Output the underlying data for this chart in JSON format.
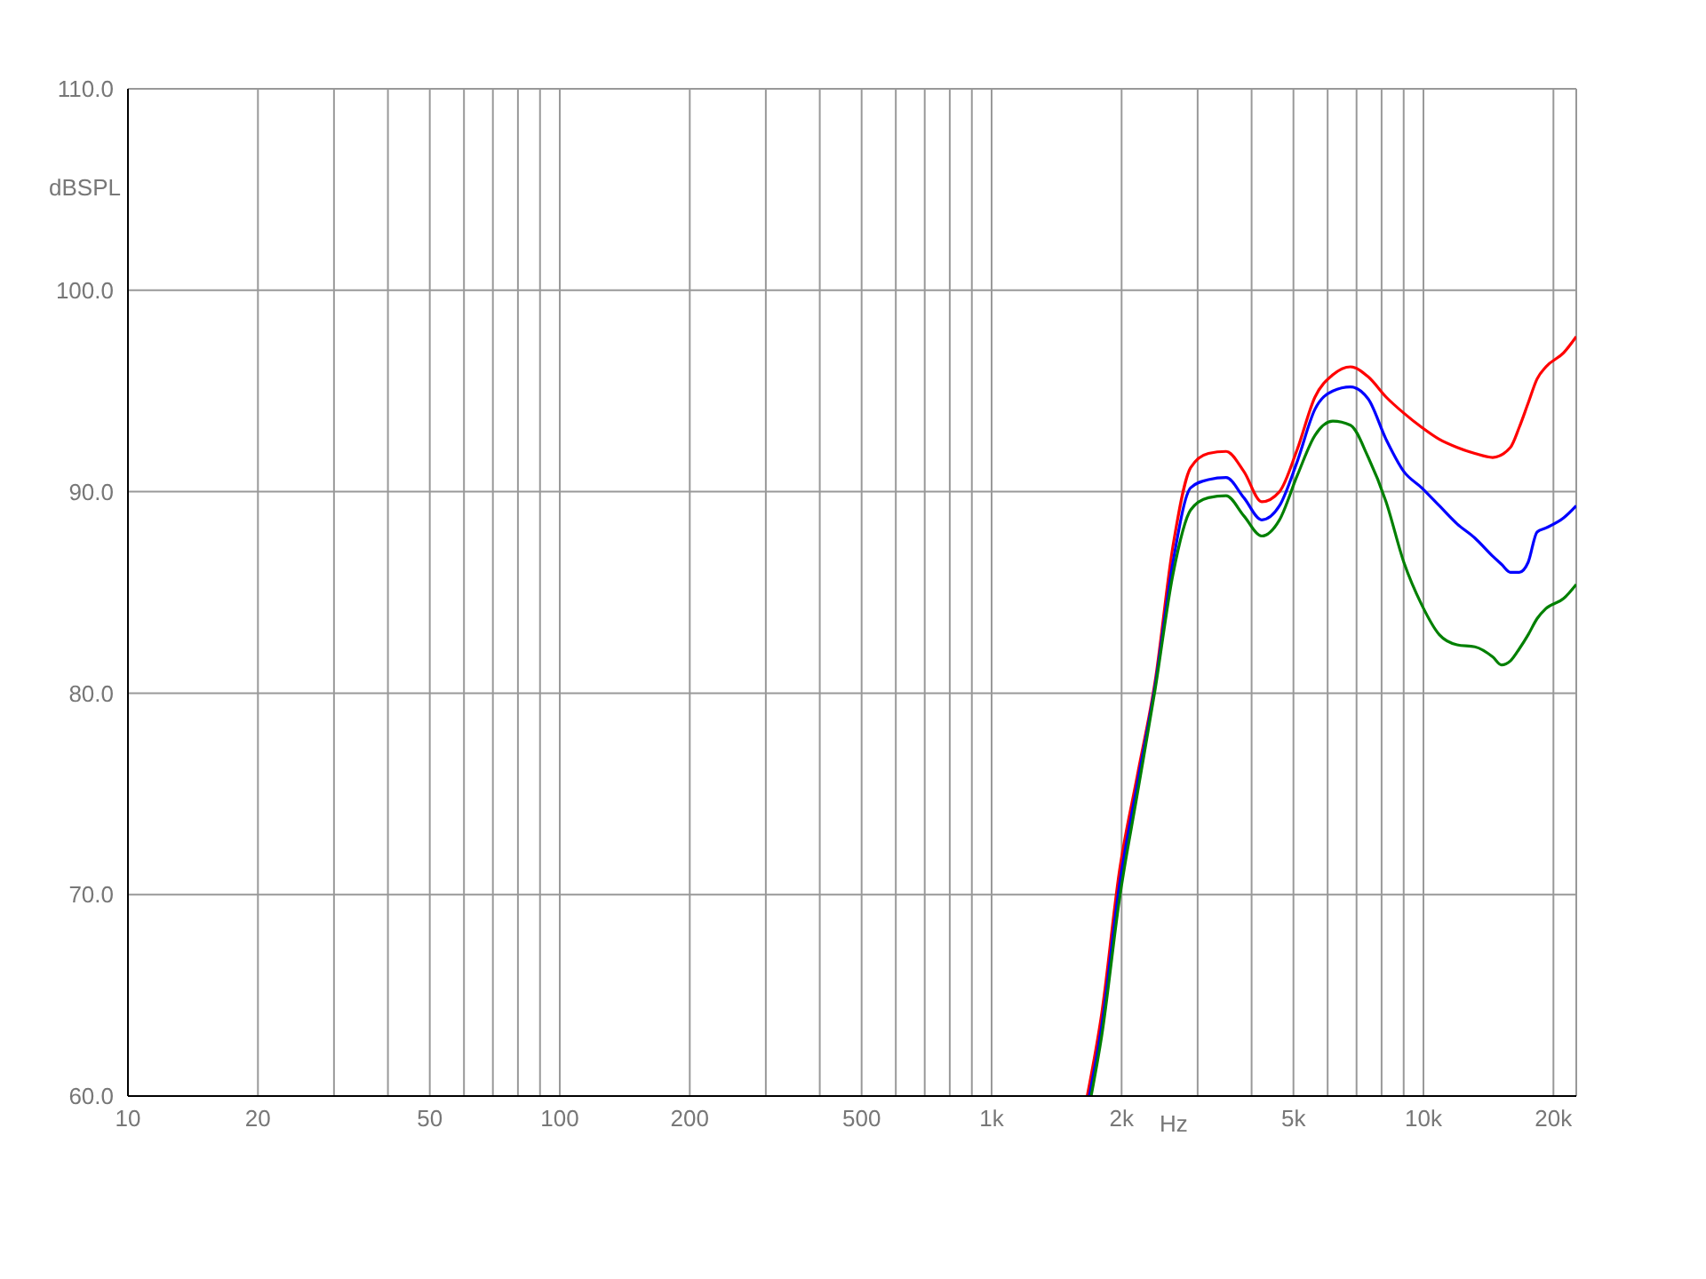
{
  "chart_data": {
    "type": "line",
    "xlabel": "Hz",
    "ylabel": "dBSPL",
    "log": "x",
    "grid": true,
    "marker": "none",
    "line_style": "solid",
    "xlim": [
      10,
      22590
    ],
    "ylim": [
      60,
      110
    ],
    "xticks": [
      10,
      20,
      {
        "value": 30,
        "label": null
      },
      {
        "value": 40,
        "label": null
      },
      50,
      {
        "value": 60,
        "label": null
      },
      {
        "value": 70,
        "label": null
      },
      {
        "value": 80,
        "label": null
      },
      {
        "value": 90,
        "label": null
      },
      100,
      200,
      {
        "value": 300,
        "label": null
      },
      {
        "value": 400,
        "label": null
      },
      500,
      {
        "value": 600,
        "label": null
      },
      {
        "value": 700,
        "label": null
      },
      {
        "value": 800,
        "label": null
      },
      {
        "value": 900,
        "label": null
      },
      {
        "value": 1000,
        "label": "1k"
      },
      {
        "value": 2000,
        "label": "2k"
      },
      {
        "value": 3000,
        "label": null
      },
      {
        "value": 4000,
        "label": null
      },
      {
        "value": 5000,
        "label": "5k"
      },
      {
        "value": 6000,
        "label": null
      },
      {
        "value": 7000,
        "label": null
      },
      {
        "value": 8000,
        "label": null
      },
      {
        "value": 9000,
        "label": null
      },
      {
        "value": 10000,
        "label": "10k"
      },
      {
        "value": 20000,
        "label": "20k"
      }
    ],
    "yticks": [
      {
        "value": 60,
        "label": "60.0"
      },
      {
        "value": 70,
        "label": "70.0"
      },
      {
        "value": 80,
        "label": "80.0"
      },
      {
        "value": 90,
        "label": "90.0"
      },
      {
        "value": 100,
        "label": "100.0"
      },
      {
        "value": 110,
        "label": "110.0"
      }
    ],
    "series": [
      {
        "color": "#ff0000",
        "x": [
          1665,
          1799,
          1978,
          2175,
          2392,
          2630,
          2891,
          3177,
          3492,
          3839,
          4222,
          4641,
          5102,
          5609,
          6166,
          6778,
          7452,
          8193,
          9007,
          9902,
          10886,
          11967,
          13155,
          14463,
          15900,
          16670,
          17480,
          18330,
          19215,
          21124,
          22590
        ],
        "values": [
          60.0,
          64.1,
          71.2,
          75.9,
          80.6,
          87.3,
          91.2,
          91.9,
          92.0,
          91.0,
          89.5,
          90.0,
          92.1,
          94.7,
          95.8,
          96.2,
          95.7,
          94.7,
          93.9,
          93.2,
          92.6,
          92.2,
          91.9,
          91.7,
          92.2,
          93.2,
          94.4,
          95.6,
          96.2,
          96.9,
          97.7
        ]
      },
      {
        "color": "#0000ff",
        "x": [
          1684,
          1799,
          1978,
          2175,
          2392,
          2630,
          2891,
          3177,
          3492,
          3839,
          4222,
          4641,
          5102,
          5609,
          6166,
          6778,
          7452,
          8193,
          9007,
          9902,
          10886,
          11967,
          13155,
          14463,
          15160,
          15900,
          16670,
          17480,
          18330,
          19215,
          21124,
          22590
        ],
        "values": [
          60.0,
          63.5,
          70.5,
          75.5,
          80.4,
          86.5,
          90.2,
          90.6,
          90.7,
          89.7,
          88.6,
          89.3,
          91.5,
          94.1,
          95.0,
          95.2,
          94.6,
          92.6,
          91.0,
          90.2,
          89.3,
          88.4,
          87.7,
          86.8,
          86.4,
          86.0,
          86.0,
          86.5,
          88.0,
          88.2,
          88.7,
          89.3
        ]
      },
      {
        "color": "#008000",
        "x": [
          1700,
          1799,
          1978,
          2175,
          2392,
          2630,
          2891,
          3177,
          3492,
          3839,
          4222,
          4641,
          5102,
          5609,
          6166,
          6778,
          7452,
          8193,
          9007,
          9902,
          10886,
          11967,
          13155,
          14463,
          15160,
          15900,
          16670,
          17480,
          18330,
          19215,
          21124,
          22590
        ],
        "values": [
          60.0,
          63.0,
          69.8,
          75.0,
          80.2,
          85.9,
          89.1,
          89.7,
          89.8,
          88.8,
          87.8,
          88.6,
          90.8,
          92.8,
          93.5,
          93.3,
          91.7,
          89.5,
          86.5,
          84.4,
          82.9,
          82.4,
          82.3,
          81.8,
          81.4,
          81.6,
          82.2,
          82.9,
          83.7,
          84.2,
          84.7,
          85.4
        ]
      }
    ]
  }
}
